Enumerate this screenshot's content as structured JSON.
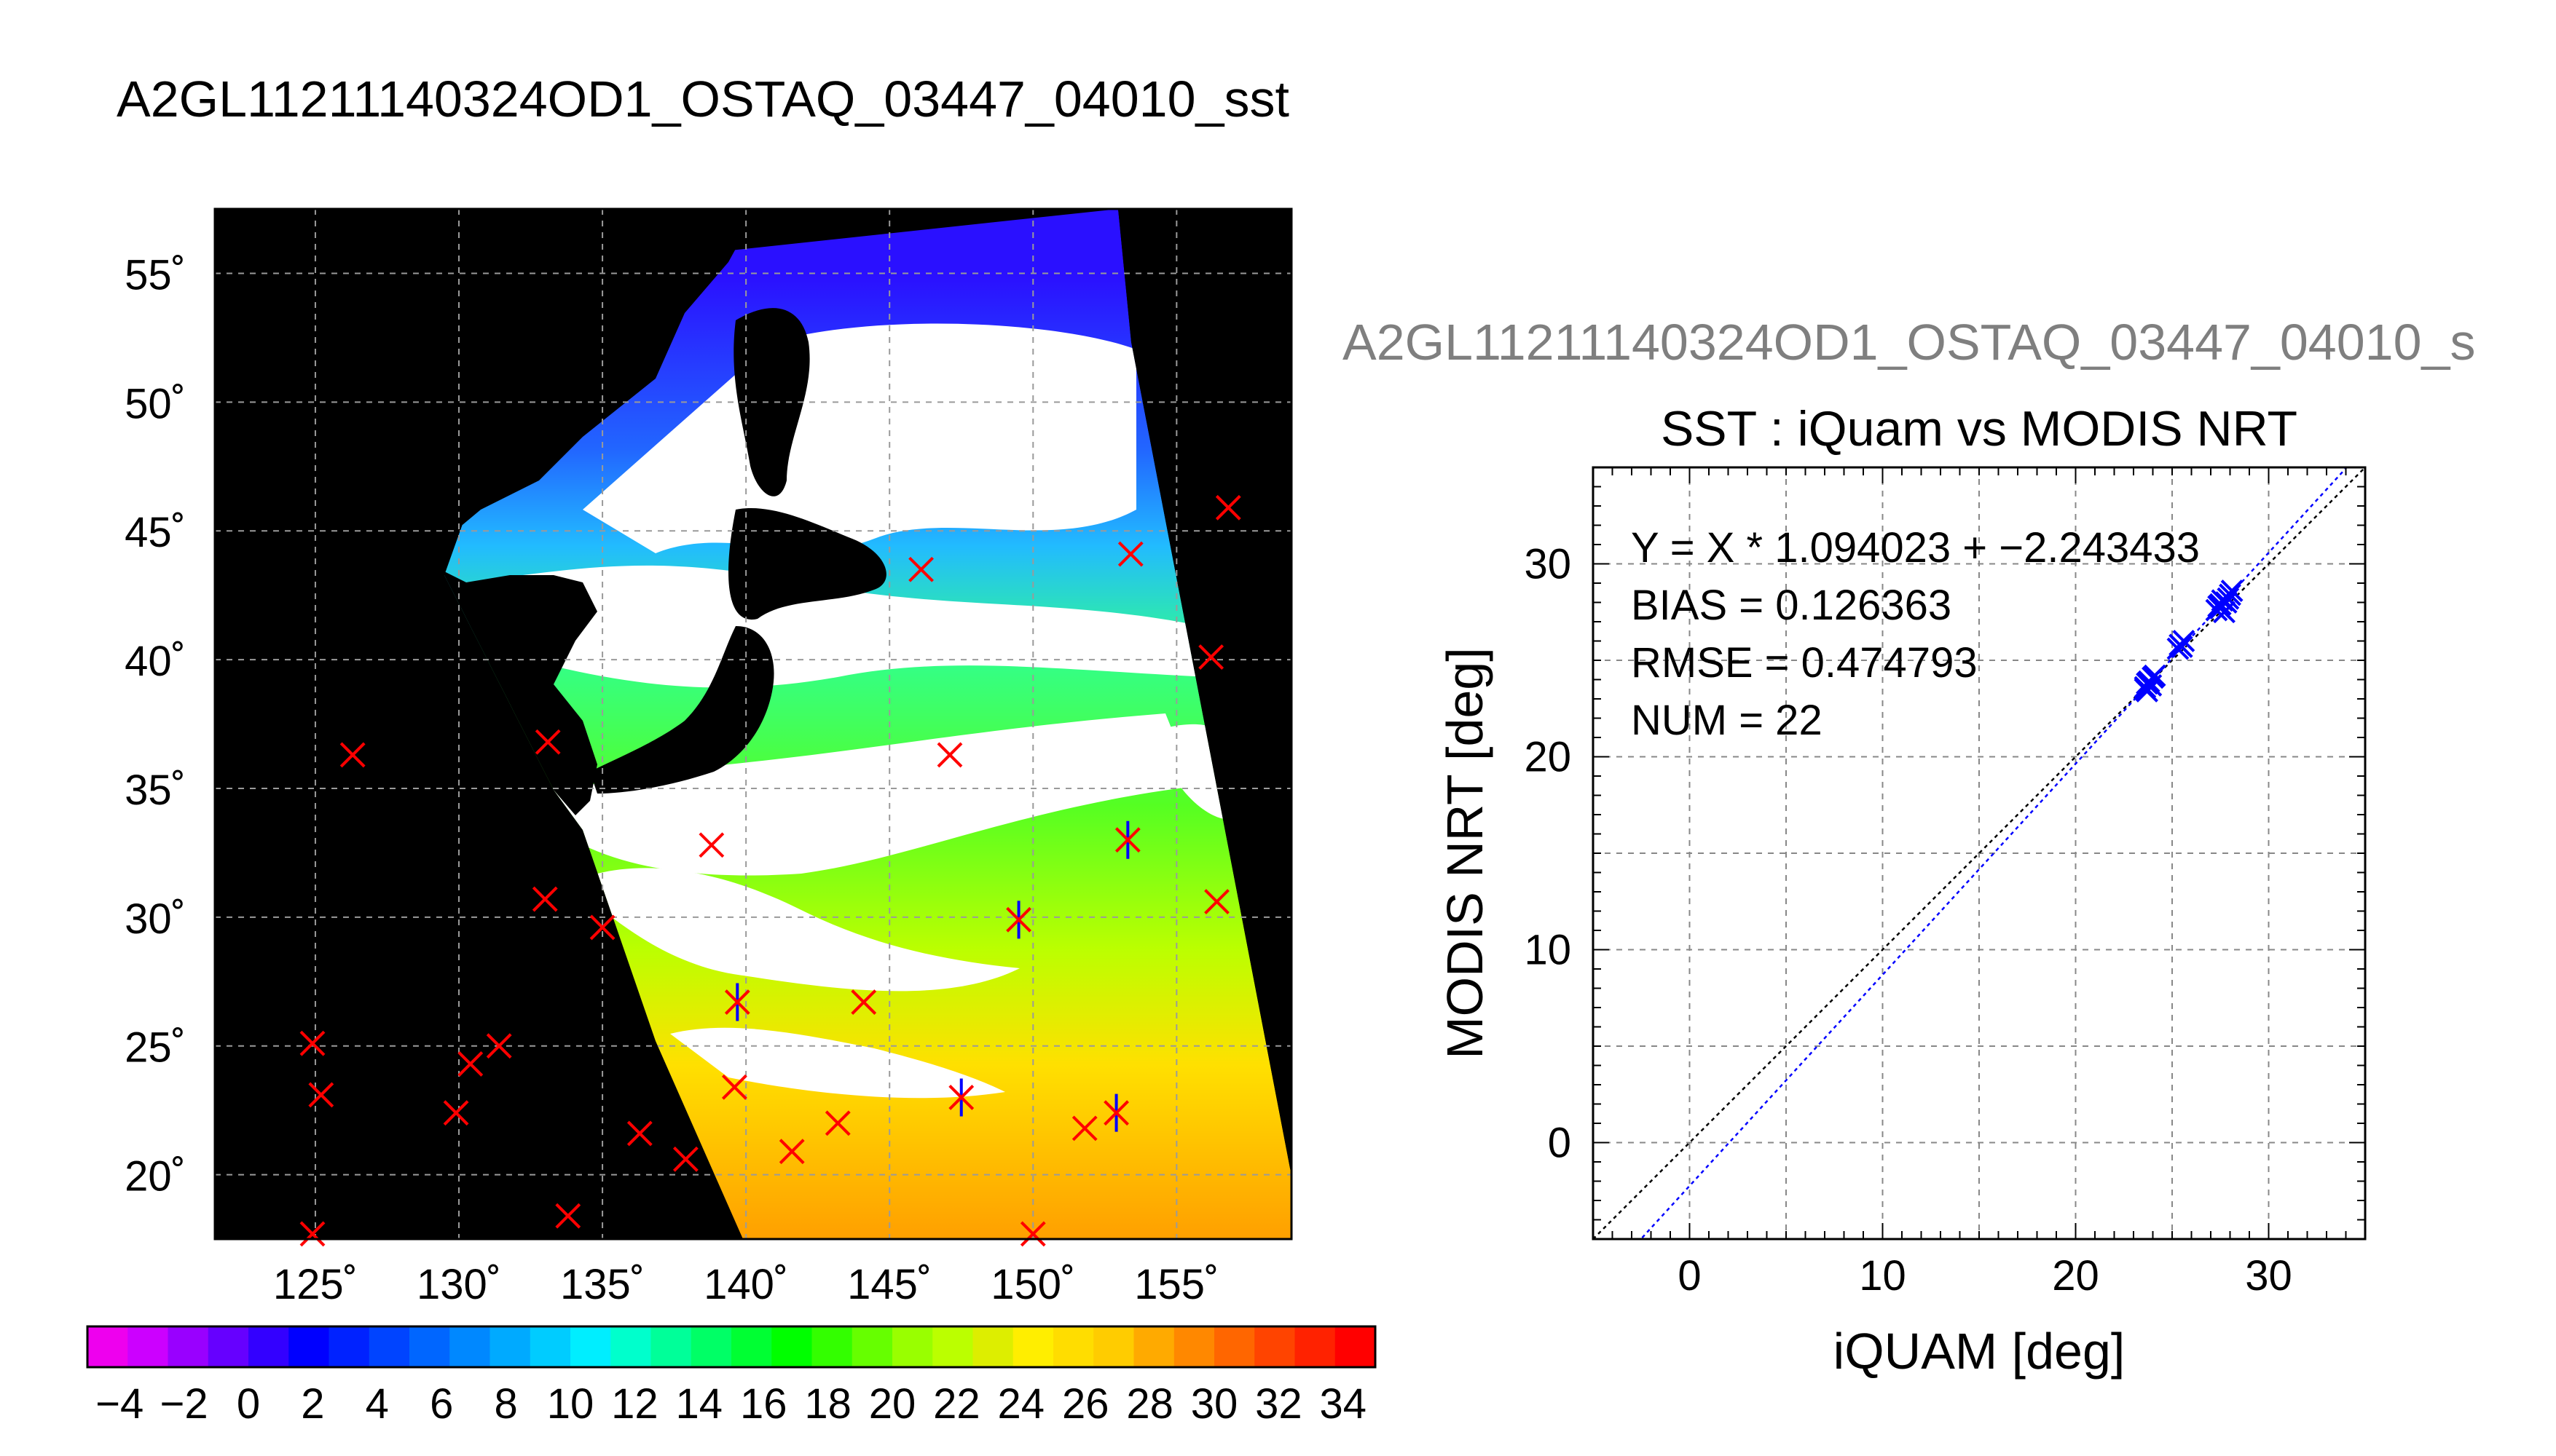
{
  "figure": {
    "main_title": "A2GL11211140324OD1_OSTAQ_03447_04010_sst",
    "right_title": "A2GL11211140324OD1_OSTAQ_03447_04010_s"
  },
  "colors": {
    "match_marker": "#ff0000",
    "matched_overlay": "#0000ff",
    "land": "#000000",
    "cloud": "#ffffff"
  },
  "map": {
    "lat_labels": [
      "55˚",
      "50˚",
      "45˚",
      "40˚",
      "35˚",
      "30˚",
      "25˚",
      "20˚"
    ],
    "lat_values": [
      55,
      50,
      45,
      40,
      35,
      30,
      25,
      20
    ],
    "lon_labels": [
      "125˚",
      "130˚",
      "135˚",
      "140˚",
      "145˚",
      "150˚",
      "155˚"
    ],
    "lon_values": [
      125,
      130,
      135,
      140,
      145,
      150,
      155
    ],
    "lon_range": [
      121.5,
      159
    ],
    "lat_range": [
      17.5,
      57.5
    ],
    "grid": true,
    "red_x_points": [
      [
        126.3,
        36.3
      ],
      [
        133.1,
        36.8
      ],
      [
        138.8,
        32.8
      ],
      [
        146.1,
        43.5
      ],
      [
        153.4,
        44.1
      ],
      [
        156.8,
        45.9
      ],
      [
        156.2,
        40.1
      ],
      [
        147.1,
        36.3
      ],
      [
        153.3,
        33.0
      ],
      [
        156.4,
        30.6
      ],
      [
        133.0,
        30.7
      ],
      [
        135.0,
        29.6
      ],
      [
        124.9,
        25.1
      ],
      [
        125.2,
        23.1
      ],
      [
        129.9,
        22.4
      ],
      [
        130.4,
        24.3
      ],
      [
        131.4,
        25.0
      ],
      [
        133.8,
        18.4
      ],
      [
        136.3,
        21.6
      ],
      [
        137.9,
        20.6
      ],
      [
        139.6,
        23.4
      ],
      [
        139.7,
        26.7
      ],
      [
        141.6,
        20.9
      ],
      [
        143.2,
        22.0
      ],
      [
        144.1,
        26.7
      ],
      [
        147.5,
        23.0
      ],
      [
        149.5,
        29.9
      ],
      [
        151.8,
        21.8
      ],
      [
        152.9,
        22.4
      ],
      [
        150.0,
        17.7
      ],
      [
        124.9,
        17.7
      ]
    ],
    "blue_star_points": [
      [
        139.7,
        26.7
      ],
      [
        147.5,
        23.0
      ],
      [
        149.5,
        29.9
      ],
      [
        152.9,
        22.4
      ],
      [
        153.3,
        33.0
      ]
    ]
  },
  "colorbar": {
    "tick_labels": [
      "−4",
      "−2",
      "0",
      "2",
      "4",
      "6",
      "8",
      "10",
      "12",
      "14",
      "16",
      "18",
      "20",
      "22",
      "24",
      "26",
      "28",
      "30",
      "32",
      "34"
    ],
    "tick_values": [
      -4,
      -2,
      0,
      2,
      4,
      6,
      8,
      10,
      12,
      14,
      16,
      18,
      20,
      22,
      24,
      26,
      28,
      30,
      32,
      34
    ],
    "range": [
      -5,
      35
    ],
    "colors": [
      "#ee00ee",
      "#cc00ff",
      "#9900ff",
      "#6600ff",
      "#3300ff",
      "#0000ff",
      "#0022ff",
      "#0044ff",
      "#0066ff",
      "#0088ff",
      "#00aaff",
      "#00ccff",
      "#00eeff",
      "#00ffcc",
      "#00ff99",
      "#00ff66",
      "#00ff33",
      "#00ff00",
      "#33ff00",
      "#66ff00",
      "#99ff00",
      "#bbff00",
      "#ddee00",
      "#ffee00",
      "#ffdd00",
      "#ffcc00",
      "#ffaa00",
      "#ff8800",
      "#ff6600",
      "#ff4400",
      "#ff2200",
      "#ff0000"
    ]
  },
  "chart_data": {
    "type": "scatter",
    "title": "SST : iQuam vs MODIS NRT",
    "xlabel": "iQUAM [deg]",
    "ylabel": "MODIS NRT [deg]",
    "xlim": [
      -5,
      35
    ],
    "ylim": [
      -5,
      35
    ],
    "xticks": [
      "0",
      "10",
      "20",
      "30"
    ],
    "xtick_values": [
      0,
      10,
      20,
      30
    ],
    "yticks": [
      "0",
      "10",
      "20",
      "30"
    ],
    "ytick_values": [
      0,
      10,
      20,
      30
    ],
    "grid": true,
    "annotations": [
      "Y = X * 1.094023 + −2.243433",
      "BIAS = 0.126363",
      "RMSE = 0.474793",
      "NUM = 22"
    ],
    "fit": {
      "slope": 1.094023,
      "intercept": -2.243433
    },
    "points": [
      [
        23.6,
        23.6
      ],
      [
        23.8,
        23.9
      ],
      [
        24.0,
        24.1
      ],
      [
        23.7,
        23.4
      ],
      [
        23.9,
        23.7
      ],
      [
        25.4,
        25.8
      ],
      [
        25.6,
        26.0
      ],
      [
        25.5,
        25.7
      ],
      [
        27.3,
        27.6
      ],
      [
        27.5,
        27.9
      ],
      [
        27.6,
        28.1
      ],
      [
        27.4,
        27.8
      ],
      [
        27.8,
        28.0
      ],
      [
        28.1,
        28.6
      ],
      [
        27.7,
        27.5
      ],
      [
        23.7,
        23.8
      ],
      [
        23.6,
        23.5
      ],
      [
        25.3,
        25.6
      ],
      [
        27.5,
        27.7
      ],
      [
        24.1,
        24.2
      ],
      [
        28.0,
        28.4
      ],
      [
        27.9,
        28.2
      ]
    ]
  }
}
